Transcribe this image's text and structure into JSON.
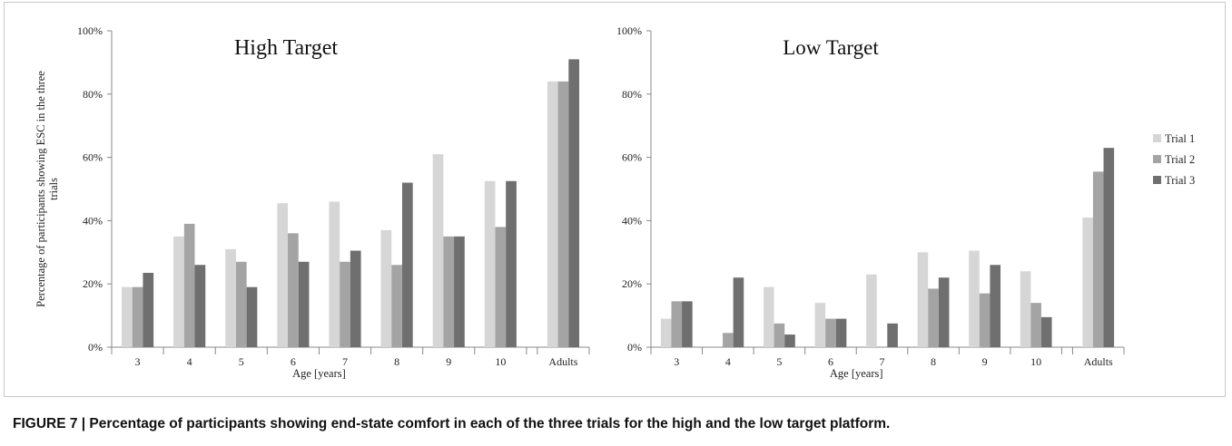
{
  "caption": "FIGURE 7 | Percentage of participants showing end-state comfort in each of the three trials for the high and the low target platform.",
  "colors": {
    "Trial 1": "#d6d6d6",
    "Trial 2": "#a4a4a4",
    "Trial 3": "#6f6f6f",
    "axis": "#888888"
  },
  "chart_data": [
    {
      "type": "bar",
      "title": "High Target",
      "ylabel": "Percentage of participants showing ESC in the three trials",
      "xlabel": "Age [years]",
      "ylim": [
        0,
        100
      ],
      "yticks": [
        "0%",
        "20%",
        "40%",
        "60%",
        "80%",
        "100%"
      ],
      "categories": [
        "3",
        "4",
        "5",
        "6",
        "7",
        "8",
        "9",
        "10",
        "Adults"
      ],
      "series": [
        {
          "name": "Trial 1",
          "values": [
            19,
            35,
            31,
            45.5,
            46,
            37,
            61,
            52.5,
            84
          ]
        },
        {
          "name": "Trial 2",
          "values": [
            19,
            39,
            27,
            36,
            27,
            26,
            35,
            38,
            84
          ]
        },
        {
          "name": "Trial 3",
          "values": [
            23.5,
            26,
            19,
            27,
            30.5,
            52,
            35,
            52.5,
            91
          ]
        }
      ],
      "grid": false
    },
    {
      "type": "bar",
      "title": "Low Target",
      "ylabel": "",
      "xlabel": "Age [years]",
      "ylim": [
        0,
        100
      ],
      "yticks": [
        "0%",
        "20%",
        "40%",
        "60%",
        "80%",
        "100%"
      ],
      "categories": [
        "3",
        "4",
        "5",
        "6",
        "7",
        "8",
        "9",
        "10",
        "Adults"
      ],
      "series": [
        {
          "name": "Trial 1",
          "values": [
            9,
            0,
            19,
            14,
            23,
            30,
            30.5,
            24,
            41
          ]
        },
        {
          "name": "Trial 2",
          "values": [
            14.5,
            4.5,
            7.5,
            9,
            0,
            18.5,
            17,
            14,
            55.5
          ]
        },
        {
          "name": "Trial 3",
          "values": [
            14.5,
            22,
            4,
            9,
            7.5,
            22,
            26,
            9.5,
            63
          ]
        }
      ],
      "grid": false,
      "legend": {
        "position": "right",
        "entries": [
          "Trial 1",
          "Trial 2",
          "Trial 3"
        ]
      }
    }
  ]
}
